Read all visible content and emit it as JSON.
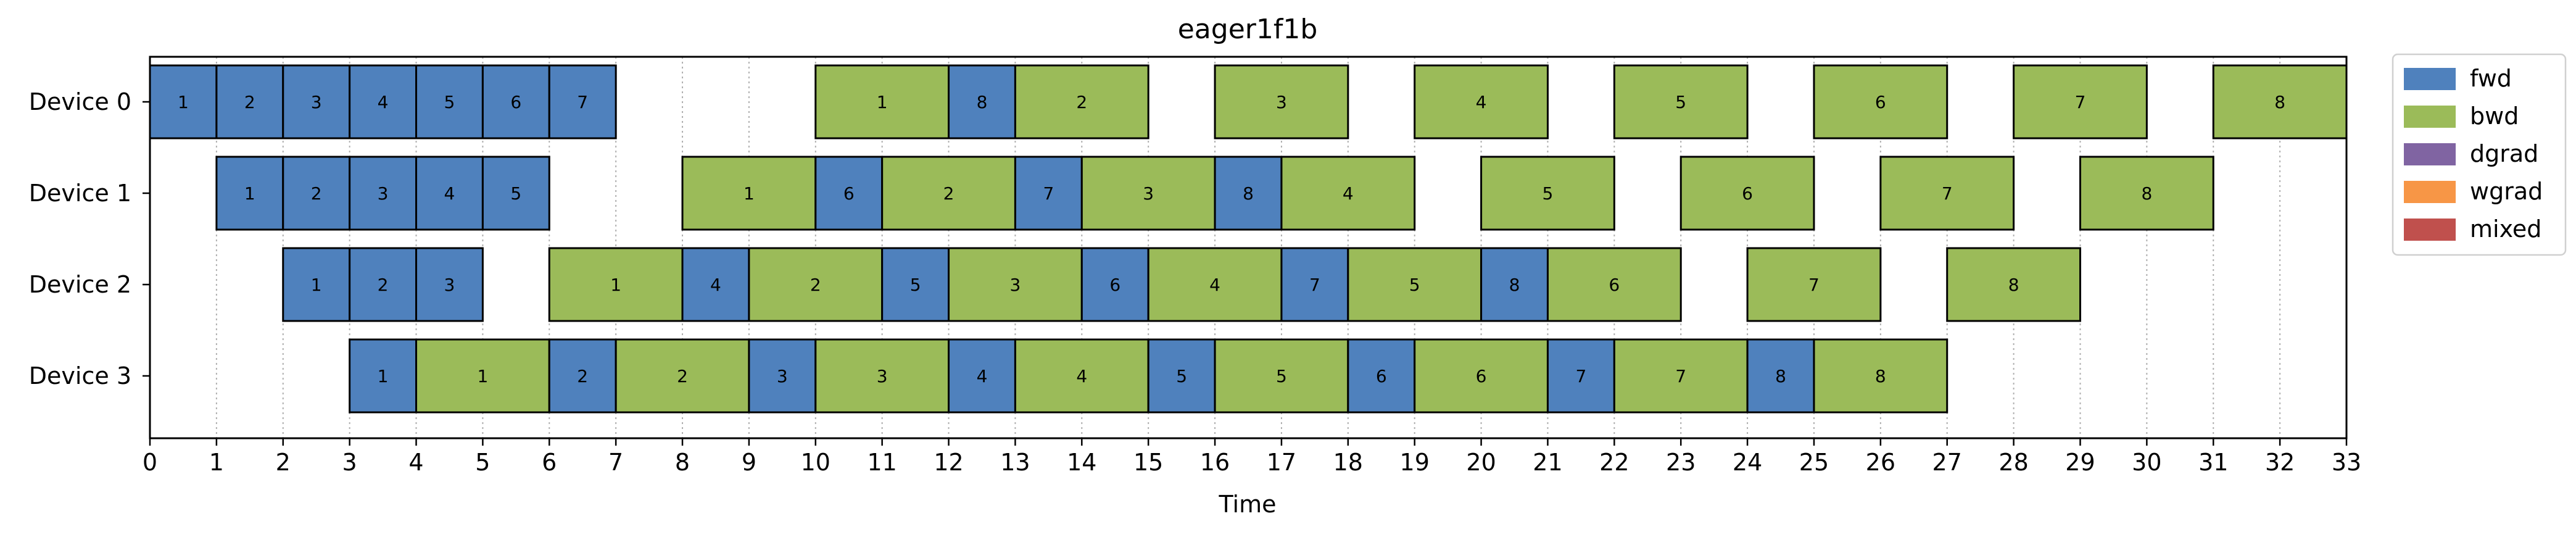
{
  "chart_data": {
    "type": "gantt",
    "title": "eager1f1b",
    "xlabel": "Time",
    "ylabel": "",
    "xlim": [
      0,
      33
    ],
    "x_ticks": [
      0,
      1,
      2,
      3,
      4,
      5,
      6,
      7,
      8,
      9,
      10,
      11,
      12,
      13,
      14,
      15,
      16,
      17,
      18,
      19,
      20,
      21,
      22,
      23,
      24,
      25,
      26,
      27,
      28,
      29,
      30,
      31,
      32,
      33
    ],
    "x_grid": true,
    "devices": [
      "Device 0",
      "Device 1",
      "Device 2",
      "Device 3"
    ],
    "legend": {
      "placement": "outside-top-right",
      "entries": [
        {
          "key": "fwd",
          "label": "fwd",
          "color": "#4f81bd"
        },
        {
          "key": "bwd",
          "label": "bwd",
          "color": "#9bbb59"
        },
        {
          "key": "dgrad",
          "label": "dgrad",
          "color": "#8064a2"
        },
        {
          "key": "wgrad",
          "label": "wgrad",
          "color": "#f79646"
        },
        {
          "key": "mixed",
          "label": "mixed",
          "color": "#c0504d"
        }
      ]
    },
    "tasks": [
      {
        "device": 0,
        "kind": "fwd",
        "start": 0,
        "end": 1,
        "label": "1"
      },
      {
        "device": 0,
        "kind": "fwd",
        "start": 1,
        "end": 2,
        "label": "2"
      },
      {
        "device": 0,
        "kind": "fwd",
        "start": 2,
        "end": 3,
        "label": "3"
      },
      {
        "device": 0,
        "kind": "fwd",
        "start": 3,
        "end": 4,
        "label": "4"
      },
      {
        "device": 0,
        "kind": "fwd",
        "start": 4,
        "end": 5,
        "label": "5"
      },
      {
        "device": 0,
        "kind": "fwd",
        "start": 5,
        "end": 6,
        "label": "6"
      },
      {
        "device": 0,
        "kind": "fwd",
        "start": 6,
        "end": 7,
        "label": "7"
      },
      {
        "device": 0,
        "kind": "bwd",
        "start": 10,
        "end": 12,
        "label": "1"
      },
      {
        "device": 0,
        "kind": "fwd",
        "start": 12,
        "end": 13,
        "label": "8"
      },
      {
        "device": 0,
        "kind": "bwd",
        "start": 13,
        "end": 15,
        "label": "2"
      },
      {
        "device": 0,
        "kind": "bwd",
        "start": 16,
        "end": 18,
        "label": "3"
      },
      {
        "device": 0,
        "kind": "bwd",
        "start": 19,
        "end": 21,
        "label": "4"
      },
      {
        "device": 0,
        "kind": "bwd",
        "start": 22,
        "end": 24,
        "label": "5"
      },
      {
        "device": 0,
        "kind": "bwd",
        "start": 25,
        "end": 27,
        "label": "6"
      },
      {
        "device": 0,
        "kind": "bwd",
        "start": 28,
        "end": 30,
        "label": "7"
      },
      {
        "device": 0,
        "kind": "bwd",
        "start": 31,
        "end": 33,
        "label": "8"
      },
      {
        "device": 1,
        "kind": "fwd",
        "start": 1,
        "end": 2,
        "label": "1"
      },
      {
        "device": 1,
        "kind": "fwd",
        "start": 2,
        "end": 3,
        "label": "2"
      },
      {
        "device": 1,
        "kind": "fwd",
        "start": 3,
        "end": 4,
        "label": "3"
      },
      {
        "device": 1,
        "kind": "fwd",
        "start": 4,
        "end": 5,
        "label": "4"
      },
      {
        "device": 1,
        "kind": "fwd",
        "start": 5,
        "end": 6,
        "label": "5"
      },
      {
        "device": 1,
        "kind": "bwd",
        "start": 8,
        "end": 10,
        "label": "1"
      },
      {
        "device": 1,
        "kind": "fwd",
        "start": 10,
        "end": 11,
        "label": "6"
      },
      {
        "device": 1,
        "kind": "bwd",
        "start": 11,
        "end": 13,
        "label": "2"
      },
      {
        "device": 1,
        "kind": "fwd",
        "start": 13,
        "end": 14,
        "label": "7"
      },
      {
        "device": 1,
        "kind": "bwd",
        "start": 14,
        "end": 16,
        "label": "3"
      },
      {
        "device": 1,
        "kind": "fwd",
        "start": 16,
        "end": 17,
        "label": "8"
      },
      {
        "device": 1,
        "kind": "bwd",
        "start": 17,
        "end": 19,
        "label": "4"
      },
      {
        "device": 1,
        "kind": "bwd",
        "start": 20,
        "end": 22,
        "label": "5"
      },
      {
        "device": 1,
        "kind": "bwd",
        "start": 23,
        "end": 25,
        "label": "6"
      },
      {
        "device": 1,
        "kind": "bwd",
        "start": 26,
        "end": 28,
        "label": "7"
      },
      {
        "device": 1,
        "kind": "bwd",
        "start": 29,
        "end": 31,
        "label": "8"
      },
      {
        "device": 2,
        "kind": "fwd",
        "start": 2,
        "end": 3,
        "label": "1"
      },
      {
        "device": 2,
        "kind": "fwd",
        "start": 3,
        "end": 4,
        "label": "2"
      },
      {
        "device": 2,
        "kind": "fwd",
        "start": 4,
        "end": 5,
        "label": "3"
      },
      {
        "device": 2,
        "kind": "bwd",
        "start": 6,
        "end": 8,
        "label": "1"
      },
      {
        "device": 2,
        "kind": "fwd",
        "start": 8,
        "end": 9,
        "label": "4"
      },
      {
        "device": 2,
        "kind": "bwd",
        "start": 9,
        "end": 11,
        "label": "2"
      },
      {
        "device": 2,
        "kind": "fwd",
        "start": 11,
        "end": 12,
        "label": "5"
      },
      {
        "device": 2,
        "kind": "bwd",
        "start": 12,
        "end": 14,
        "label": "3"
      },
      {
        "device": 2,
        "kind": "fwd",
        "start": 14,
        "end": 15,
        "label": "6"
      },
      {
        "device": 2,
        "kind": "bwd",
        "start": 15,
        "end": 17,
        "label": "4"
      },
      {
        "device": 2,
        "kind": "fwd",
        "start": 17,
        "end": 18,
        "label": "7"
      },
      {
        "device": 2,
        "kind": "bwd",
        "start": 18,
        "end": 20,
        "label": "5"
      },
      {
        "device": 2,
        "kind": "fwd",
        "start": 20,
        "end": 21,
        "label": "8"
      },
      {
        "device": 2,
        "kind": "bwd",
        "start": 21,
        "end": 23,
        "label": "6"
      },
      {
        "device": 2,
        "kind": "bwd",
        "start": 24,
        "end": 26,
        "label": "7"
      },
      {
        "device": 2,
        "kind": "bwd",
        "start": 27,
        "end": 29,
        "label": "8"
      },
      {
        "device": 3,
        "kind": "fwd",
        "start": 3,
        "end": 4,
        "label": "1"
      },
      {
        "device": 3,
        "kind": "bwd",
        "start": 4,
        "end": 6,
        "label": "1"
      },
      {
        "device": 3,
        "kind": "fwd",
        "start": 6,
        "end": 7,
        "label": "2"
      },
      {
        "device": 3,
        "kind": "bwd",
        "start": 7,
        "end": 9,
        "label": "2"
      },
      {
        "device": 3,
        "kind": "fwd",
        "start": 9,
        "end": 10,
        "label": "3"
      },
      {
        "device": 3,
        "kind": "bwd",
        "start": 10,
        "end": 12,
        "label": "3"
      },
      {
        "device": 3,
        "kind": "fwd",
        "start": 12,
        "end": 13,
        "label": "4"
      },
      {
        "device": 3,
        "kind": "bwd",
        "start": 13,
        "end": 15,
        "label": "4"
      },
      {
        "device": 3,
        "kind": "fwd",
        "start": 15,
        "end": 16,
        "label": "5"
      },
      {
        "device": 3,
        "kind": "bwd",
        "start": 16,
        "end": 18,
        "label": "5"
      },
      {
        "device": 3,
        "kind": "fwd",
        "start": 18,
        "end": 19,
        "label": "6"
      },
      {
        "device": 3,
        "kind": "bwd",
        "start": 19,
        "end": 21,
        "label": "6"
      },
      {
        "device": 3,
        "kind": "fwd",
        "start": 21,
        "end": 22,
        "label": "7"
      },
      {
        "device": 3,
        "kind": "bwd",
        "start": 22,
        "end": 24,
        "label": "7"
      },
      {
        "device": 3,
        "kind": "fwd",
        "start": 24,
        "end": 25,
        "label": "8"
      },
      {
        "device": 3,
        "kind": "bwd",
        "start": 25,
        "end": 27,
        "label": "8"
      }
    ]
  }
}
